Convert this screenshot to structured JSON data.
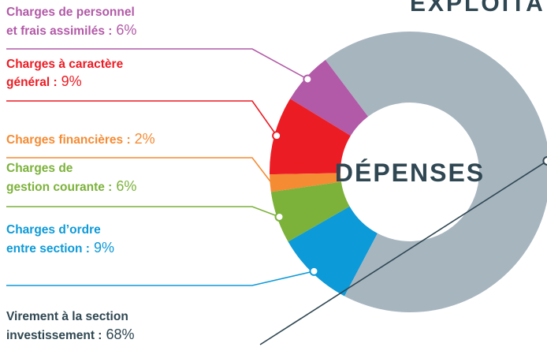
{
  "chart_data": {
    "type": "donut",
    "title": "EXPLOITATION",
    "center_label": "DÉPENSES",
    "categories": [
      [
        "Charges de personnel",
        "et frais assimilés :"
      ],
      [
        "Charges à caractère",
        "général :"
      ],
      [
        "Charges financières :"
      ],
      [
        "Charges de",
        "gestion courante :"
      ],
      [
        "Charges d’ordre",
        "entre section :"
      ],
      [
        "Virement à la section",
        "investissement :"
      ]
    ],
    "values": [
      6,
      9,
      2,
      6,
      9,
      68
    ],
    "value_labels": [
      "6%",
      "9%",
      "2%",
      "6%",
      "9%",
      "68%"
    ],
    "colors": [
      "#b25aa7",
      "#ec1c24",
      "#f58b33",
      "#7cb23a",
      "#0d9ad8",
      "#a7b5bf"
    ],
    "label_colors": [
      "#b25aa7",
      "#ec1c24",
      "#f58b33",
      "#7cb23a",
      "#0d9ad8",
      "#2f4752"
    ]
  }
}
